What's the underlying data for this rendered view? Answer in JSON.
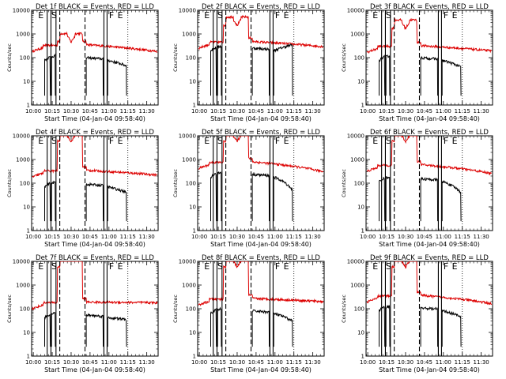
{
  "chart_data": {
    "type": "line",
    "ylabel": "Counts/sec",
    "xlabel": "Start Time (04-Jan-04 09:58:40)",
    "y_scale": "log",
    "ylim": [
      1,
      10000
    ],
    "y_ticks": [
      {
        "v": 1,
        "label": "1"
      },
      {
        "v": 10,
        "label": "10"
      },
      {
        "v": 100,
        "label": "100"
      },
      {
        "v": 1000,
        "label": "1000"
      },
      {
        "v": 10000,
        "label": "10000"
      }
    ],
    "xlim": [
      "09:58:40",
      "11:39:00"
    ],
    "x_ticks": [
      "10:00",
      "10:15",
      "10:30",
      "10:45",
      "11:00",
      "11:15",
      "11:30"
    ],
    "series_colors": {
      "events": "#000000",
      "lld": "#dd0000"
    },
    "marker_lines": [
      {
        "t": "10:11:00",
        "style": "solid"
      },
      {
        "t": "10:14:00",
        "style": "solid"
      },
      {
        "t": "10:18:00",
        "style": "solid"
      },
      {
        "t": "10:21:00",
        "style": "dashed"
      },
      {
        "t": "10:41:00",
        "style": "dashed"
      },
      {
        "t": "10:56:00",
        "style": "solid"
      },
      {
        "t": "10:58:30",
        "style": "solid"
      },
      {
        "t": "11:15:00",
        "style": "dotted"
      }
    ],
    "marker_letters": [
      {
        "t": "10:06:00",
        "label": "E"
      },
      {
        "t": "10:16:30",
        "label": "S"
      },
      {
        "t": "11:02:00",
        "label": "F"
      },
      {
        "t": "11:09:00",
        "label": "E"
      }
    ],
    "panels": [
      {
        "title": "Det 1f BLACK = Events, RED = LLD",
        "events_base": 110,
        "lld_base": 220,
        "events_end": 45,
        "lld_end": 180,
        "lld_peak": 800,
        "lld_bump": 1
      },
      {
        "title": "Det 2f BLACK = Events, RED = LLD",
        "events_base": 280,
        "lld_base": 300,
        "events_end": 350,
        "lld_end": 290,
        "lld_peak": 4000,
        "lld_bump": 1
      },
      {
        "title": "Det 3f BLACK = Events, RED = LLD",
        "events_base": 110,
        "lld_base": 200,
        "events_end": 40,
        "lld_end": 190,
        "lld_peak": 3000,
        "lld_bump": 1
      },
      {
        "title": "Det 4f BLACK = Events, RED = LLD",
        "events_base": 100,
        "lld_base": 220,
        "events_end": 40,
        "lld_end": 220,
        "lld_peak": 10000,
        "lld_bump": 1
      },
      {
        "title": "Det 5f BLACK = Events, RED = LLD",
        "events_base": 260,
        "lld_base": 500,
        "events_end": 50,
        "lld_end": 300,
        "lld_peak": 10000,
        "lld_bump": 1
      },
      {
        "title": "Det 6f BLACK = Events, RED = LLD",
        "events_base": 170,
        "lld_base": 380,
        "events_end": 40,
        "lld_end": 250,
        "lld_peak": 10000,
        "lld_bump": 1
      },
      {
        "title": "Det 7f BLACK = Events, RED = LLD",
        "events_base": 60,
        "lld_base": 120,
        "events_end": 35,
        "lld_end": 180,
        "lld_peak": 10000,
        "lld_bump": 0
      },
      {
        "title": "Det 8f BLACK = Events, RED = LLD",
        "events_base": 90,
        "lld_base": 170,
        "events_end": 30,
        "lld_end": 200,
        "lld_peak": 10000,
        "lld_bump": 1
      },
      {
        "title": "Det 9f BLACK = Events, RED = LLD",
        "events_base": 120,
        "lld_base": 230,
        "events_end": 45,
        "lld_end": 160,
        "lld_peak": 10000,
        "lld_bump": 1
      }
    ]
  }
}
